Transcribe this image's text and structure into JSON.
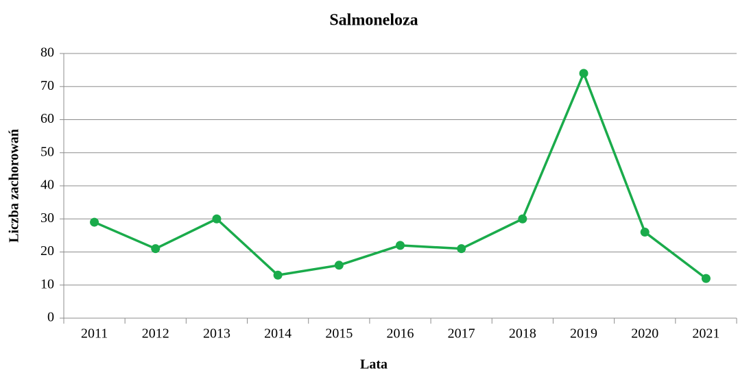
{
  "chart_data": {
    "type": "line",
    "title": "Salmoneloza",
    "x_label": "Lata",
    "y_label": "Liczba zachorowań",
    "categories": [
      "2011",
      "2012",
      "2013",
      "2014",
      "2015",
      "2016",
      "2017",
      "2018",
      "2019",
      "2020",
      "2021"
    ],
    "values": [
      29,
      21,
      30,
      13,
      16,
      22,
      21,
      30,
      74,
      26,
      12
    ],
    "color": "#1aab4b",
    "ylim": [
      0,
      80
    ],
    "yticks": [
      0,
      10,
      20,
      30,
      40,
      50,
      60,
      70,
      80
    ],
    "grid": true
  }
}
